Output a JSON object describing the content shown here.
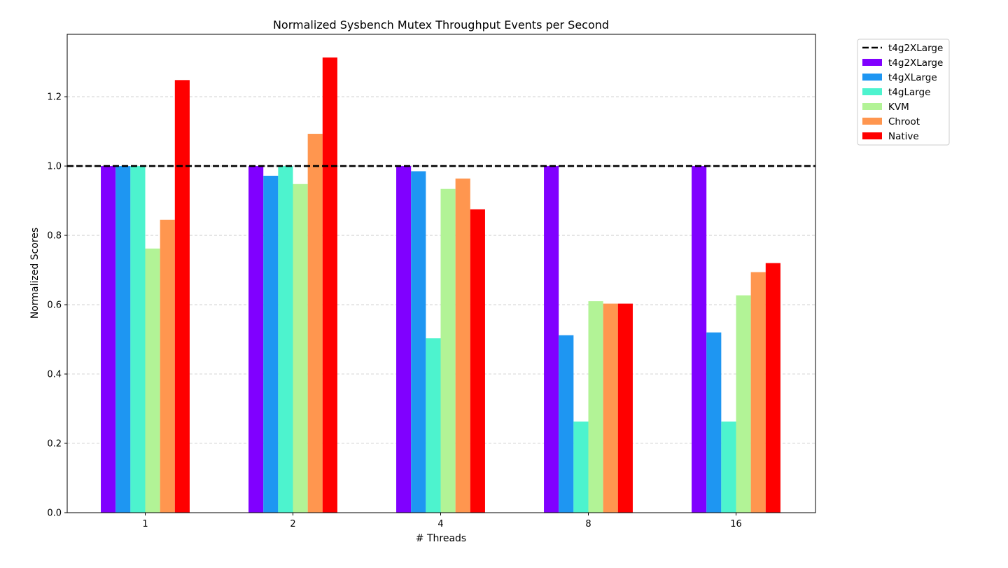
{
  "chart_data": {
    "type": "bar",
    "title": "Normalized Sysbench Mutex Throughput Events per Second",
    "xlabel": "# Threads",
    "ylabel": "Normalized Scores",
    "categories": [
      "1",
      "2",
      "4",
      "8",
      "16"
    ],
    "ylim": [
      0,
      1.38
    ],
    "yticks": [
      "0.0",
      "0.2",
      "0.4",
      "0.6",
      "0.8",
      "1.0",
      "1.2"
    ],
    "grid": "y-dashed",
    "legend_position": "outside-top-right",
    "reference_line": {
      "name": "t4g2XLarge",
      "value": 1.0,
      "color": "#000000",
      "style": "dashed"
    },
    "series": [
      {
        "name": "t4g2XLarge",
        "color": "#8000ff",
        "values": [
          1.0,
          1.0,
          1.0,
          1.0,
          1.0
        ]
      },
      {
        "name": "t4gXLarge",
        "color": "#1e96f2",
        "values": [
          1.0,
          0.972,
          0.985,
          0.512,
          0.52
        ]
      },
      {
        "name": "t4gLarge",
        "color": "#4df3ce",
        "values": [
          1.0,
          1.0,
          0.503,
          0.263,
          0.263
        ]
      },
      {
        "name": "KVM",
        "color": "#b2f396",
        "values": [
          0.762,
          0.948,
          0.934,
          0.61,
          0.627
        ]
      },
      {
        "name": "Chroot",
        "color": "#ff964f",
        "values": [
          0.845,
          1.093,
          0.964,
          0.603,
          0.694
        ]
      },
      {
        "name": "Native",
        "color": "#ff0000",
        "values": [
          1.248,
          1.313,
          0.875,
          0.603,
          0.72
        ]
      }
    ]
  }
}
